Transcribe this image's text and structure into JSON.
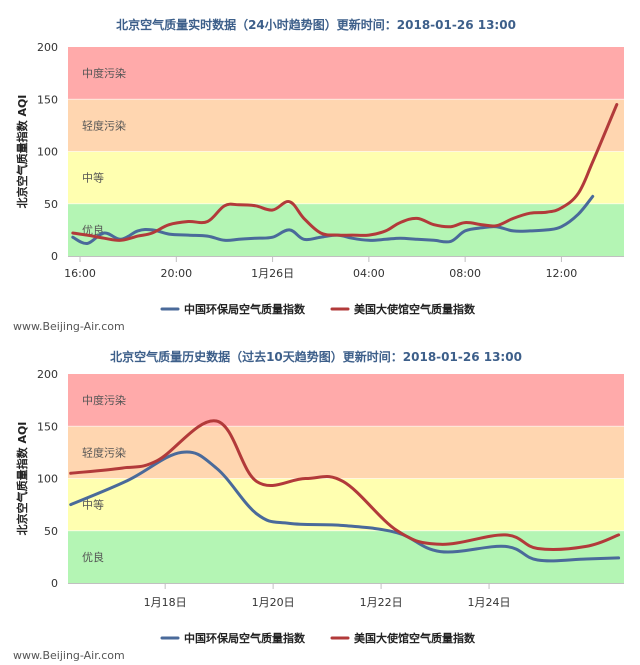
{
  "chart_data": [
    {
      "type": "line",
      "title": "北京空气质量实时数据（24小时趋势图）更新时间：2018-01-26 13:00",
      "ylabel": "北京空气质量指数 AQI",
      "ylim": [
        0,
        200
      ],
      "yticks": [
        "0",
        "50",
        "100",
        "150",
        "200"
      ],
      "x_range": [
        15.5,
        38.6
      ],
      "xticks": [
        {
          "x": 16,
          "label": "16:00"
        },
        {
          "x": 20,
          "label": "20:00"
        },
        {
          "x": 24,
          "label": "1月26日"
        },
        {
          "x": 28,
          "label": "04:00"
        },
        {
          "x": 32,
          "label": "08:00"
        },
        {
          "x": 36,
          "label": "12:00"
        }
      ],
      "bands": [
        {
          "from": 0,
          "to": 50,
          "label": "优良",
          "color": "#b4f5b4"
        },
        {
          "from": 50,
          "to": 100,
          "label": "中等",
          "color": "#ffffb0"
        },
        {
          "from": 100,
          "to": 150,
          "label": "轻度污染",
          "color": "#ffd6b0"
        },
        {
          "from": 150,
          "to": 200,
          "label": "中度污染",
          "color": "#ffaaaa"
        }
      ],
      "legend_position": "bottom",
      "series": [
        {
          "name": "中国环保局空气质量指数",
          "color": "#4a6a9a",
          "x": [
            15.7,
            16.3,
            17,
            17.7,
            18.4,
            19,
            19.7,
            20.5,
            21.3,
            22,
            22.6,
            23.3,
            24,
            24.7,
            25.3,
            26,
            26.7,
            27.3,
            28,
            28.7,
            29.3,
            30,
            30.7,
            31.4,
            32,
            32.7,
            33.3,
            34,
            34.7,
            35.4,
            36,
            36.7,
            37.3
          ],
          "values": [
            18,
            12,
            22,
            16,
            24,
            25,
            21,
            20,
            19,
            15,
            16,
            17,
            18,
            25,
            16,
            18,
            20,
            17,
            15,
            16,
            17,
            16,
            15,
            14,
            24,
            27,
            28,
            24,
            24,
            25,
            28,
            40,
            57
          ]
        },
        {
          "name": "美国大使馆空气质量指数",
          "color": "#b23a3a",
          "x": [
            15.7,
            16.3,
            17,
            17.7,
            18.4,
            19,
            19.7,
            20.5,
            21.3,
            22,
            22.6,
            23.3,
            24,
            24.7,
            25.3,
            26,
            26.7,
            27.3,
            28,
            28.7,
            29.3,
            30,
            30.7,
            31.4,
            32,
            32.7,
            33.3,
            34,
            34.7,
            35.4,
            36,
            36.7,
            37.3,
            38.3
          ],
          "values": [
            22,
            20,
            17,
            15,
            19,
            22,
            30,
            33,
            33,
            48,
            49,
            48,
            44,
            52,
            36,
            22,
            20,
            20,
            20,
            24,
            32,
            36,
            30,
            28,
            32,
            30,
            29,
            36,
            41,
            42,
            46,
            60,
            90,
            145
          ]
        }
      ]
    },
    {
      "type": "line",
      "title": "北京空气质量历史数据（过去10天趋势图）更新时间：2018-01-26 13:00",
      "ylabel": "北京空气质量指数 AQI",
      "ylim": [
        0,
        200
      ],
      "yticks": [
        "0",
        "50",
        "100",
        "150",
        "200"
      ],
      "x_range": [
        16.2,
        26.5
      ],
      "xticks": [
        {
          "x": 18,
          "label": "1月18日"
        },
        {
          "x": 20,
          "label": "1月20日"
        },
        {
          "x": 22,
          "label": "1月22日"
        },
        {
          "x": 24,
          "label": "1月24日"
        }
      ],
      "bands": [
        {
          "from": 0,
          "to": 50,
          "label": "优良",
          "color": "#b4f5b4"
        },
        {
          "from": 50,
          "to": 100,
          "label": "中等",
          "color": "#ffffb0"
        },
        {
          "from": 100,
          "to": 150,
          "label": "轻度污染",
          "color": "#ffd6b0"
        },
        {
          "from": 150,
          "to": 200,
          "label": "中度污染",
          "color": "#ffaaaa"
        }
      ],
      "legend_position": "bottom",
      "series": [
        {
          "name": "中国环保局空气质量指数",
          "color": "#4a6a9a",
          "x": [
            16.25,
            17.3,
            18.3,
            18.95,
            19.7,
            20.3,
            21.3,
            22.3,
            23.1,
            24.3,
            24.9,
            25.8,
            26.4
          ],
          "values": [
            75,
            98,
            125,
            110,
            66,
            57,
            55,
            48,
            30,
            35,
            22,
            23,
            24
          ],
          "curve": true
        },
        {
          "name": "美国大使馆空气质量指数",
          "color": "#b23a3a",
          "x": [
            16.25,
            17.2,
            17.85,
            18.95,
            19.7,
            20.6,
            21.3,
            22.3,
            23.1,
            24.3,
            24.9,
            25.8,
            26.4
          ],
          "values": [
            105,
            110,
            117,
            155,
            97,
            100,
            97,
            50,
            37,
            46,
            33,
            35,
            46
          ],
          "curve": true
        }
      ]
    }
  ],
  "watermarks": [
    "www.Beijing-Air.com",
    "www.Beijing-Air.com"
  ]
}
